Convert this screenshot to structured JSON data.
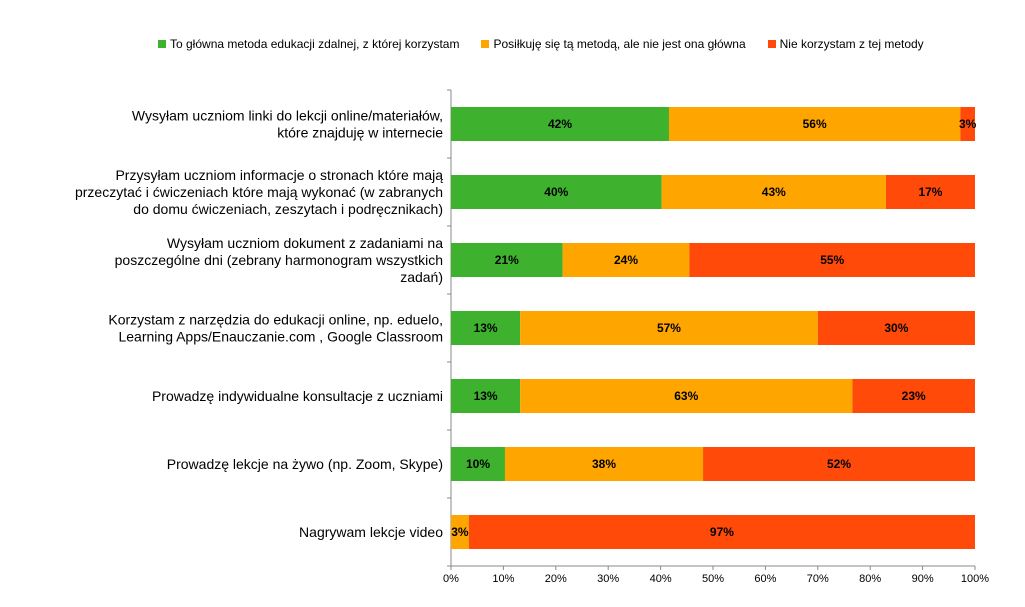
{
  "chart_data": {
    "type": "bar",
    "orientation": "horizontal",
    "stacked": true,
    "title": "",
    "xlabel": "",
    "ylabel": "",
    "xlim": [
      0,
      100
    ],
    "x_ticks": [
      "0%",
      "10%",
      "20%",
      "30%",
      "40%",
      "50%",
      "60%",
      "70%",
      "80%",
      "90%",
      "100%"
    ],
    "grid": false,
    "legend_position": "top",
    "categories": [
      [
        "Wysyłam uczniom linki do lekcji online/materiałów,",
        "które znajduję w internecie"
      ],
      [
        "Przysyłam uczniom informacje o stronach które mają",
        "przeczytać i ćwiczeniach które mają wykonać (w zabranych",
        "do domu ćwiczeniach, zeszytach i podręcznikach)"
      ],
      [
        "Wysyłam uczniom dokument z zadaniami na",
        "poszczególne dni (zebrany harmonogram wszystkich",
        "zadań)"
      ],
      [
        "Korzystam z narzędzia do edukacji online, np. eduelo,",
        "Learning Apps/Enauczanie.com , Google Classroom"
      ],
      [
        "Prowadzę indywidualne konsultacje z uczniami"
      ],
      [
        "Prowadzę lekcje na żywo (np. Zoom, Skype)"
      ],
      [
        "Nagrywam lekcje video"
      ]
    ],
    "series": [
      {
        "name": "To główna metoda edukacji zdalnej, z której korzystam",
        "color": "#3eb22f",
        "values": [
          41.6,
          40.2,
          21.3,
          13.2,
          13.2,
          10.3,
          0
        ],
        "labels": [
          "42%",
          "40%",
          "21%",
          "13%",
          "13%",
          "10%",
          ""
        ]
      },
      {
        "name": "Posiłkuję się tą metodą, ale nie jest ona główna",
        "color": "#ffa500",
        "values": [
          55.6,
          42.8,
          24.2,
          56.8,
          63.4,
          37.8,
          3.4
        ],
        "labels": [
          "56%",
          "43%",
          "24%",
          "57%",
          "63%",
          "38%",
          "3%"
        ]
      },
      {
        "name": "Nie korzystam z tej metody",
        "color": "#ff4a0a",
        "values": [
          2.8,
          17.0,
          54.5,
          30.0,
          23.4,
          51.9,
          96.6
        ],
        "labels": [
          "3%",
          "17%",
          "55%",
          "30%",
          "23%",
          "52%",
          "97%"
        ]
      }
    ]
  }
}
